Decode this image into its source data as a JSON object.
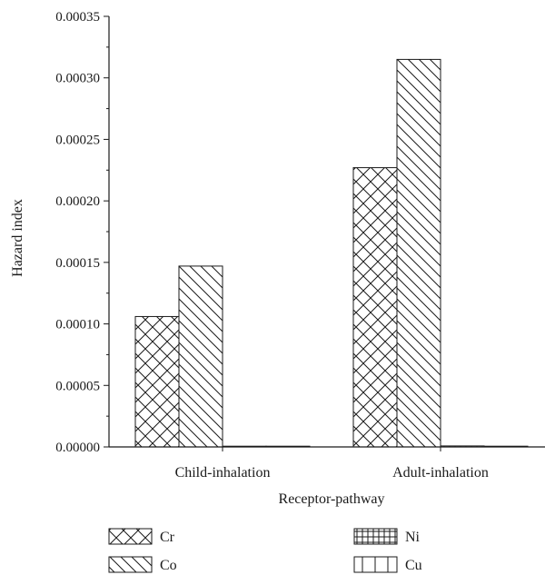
{
  "chart_data": {
    "type": "bar",
    "title": "",
    "xlabel": "Receptor-pathway",
    "ylabel": "Hazard index",
    "ylim": [
      0,
      0.00035
    ],
    "y_ticks": [
      "0.00000",
      "0.00005",
      "0.00010",
      "0.00015",
      "0.00020",
      "0.00025",
      "0.00030",
      "0.00035"
    ],
    "grid": false,
    "legend_position": "bottom",
    "categories": [
      "Child-inhalation",
      "Adult-inhalation"
    ],
    "series": [
      {
        "name": "Cr",
        "pattern": "crosshatch",
        "values": [
          0.000106,
          0.000227
        ]
      },
      {
        "name": "Co",
        "pattern": "backslash",
        "values": [
          0.000147,
          0.000315
        ]
      },
      {
        "name": "Ni",
        "pattern": "grid",
        "values": [
          2e-07,
          8e-07
        ]
      },
      {
        "name": "Cu",
        "pattern": "vertical",
        "values": [
          1e-07,
          4e-07
        ]
      }
    ],
    "colors": {
      "stroke": "#1a1a1a",
      "background": "#ffffff"
    }
  }
}
